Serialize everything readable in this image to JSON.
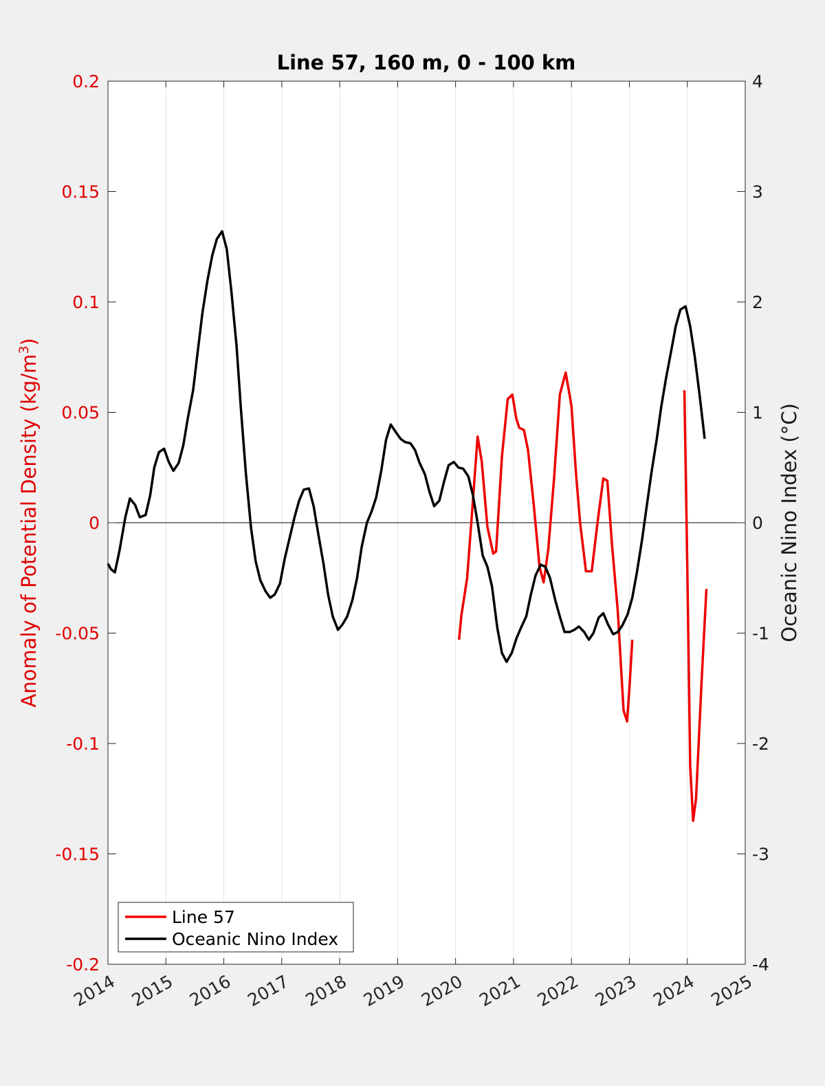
{
  "chart_data": {
    "type": "line",
    "title": "Line 57, 160 m, 0 - 100 km",
    "xlabel": "",
    "ylabel_left": "Anomaly of Potential Density (kg/m",
    "ylabel_left_sup": "3",
    "ylabel_left_close": ")",
    "ylabel_right": "Oceanic Nino Index (°C)",
    "xlim": [
      2014,
      2025
    ],
    "ylim_left": [
      -0.2,
      0.2
    ],
    "ylim_right": [
      -4,
      4
    ],
    "x_ticks": [
      "2014",
      "2015",
      "2016",
      "2017",
      "2018",
      "2019",
      "2020",
      "2021",
      "2022",
      "2023",
      "2024",
      "2025"
    ],
    "y_ticks_left": [
      "0.2",
      "0.15",
      "0.1",
      "0.05",
      "0",
      "-0.05",
      "-0.1",
      "-0.15",
      "-0.2"
    ],
    "y_ticks_right": [
      "4",
      "3",
      "2",
      "1",
      "0",
      "-1",
      "-2",
      "-3",
      "-4"
    ],
    "grid": "vertical",
    "zero_line": true,
    "legend_position": "bottom-left",
    "colors": {
      "line57": "#ee0000",
      "oni": "#000000",
      "left_axis": "#e00000",
      "right_axis": "#1a1a1a",
      "grid": "#e3e3e3"
    },
    "series": [
      {
        "name": "Line 57",
        "axis": "left",
        "segments": [
          [
            [
              2020.06,
              -0.053
            ],
            [
              2020.1,
              -0.042
            ],
            [
              2020.2,
              -0.025
            ],
            [
              2020.3,
              0.01
            ],
            [
              2020.38,
              0.039
            ],
            [
              2020.45,
              0.028
            ],
            [
              2020.55,
              -0.002
            ],
            [
              2020.65,
              -0.014
            ],
            [
              2020.7,
              -0.013
            ],
            [
              2020.8,
              0.03
            ],
            [
              2020.9,
              0.056
            ],
            [
              2020.98,
              0.058
            ],
            [
              2021.05,
              0.047
            ],
            [
              2021.1,
              0.043
            ],
            [
              2021.18,
              0.042
            ],
            [
              2021.25,
              0.033
            ],
            [
              2021.35,
              0.008
            ],
            [
              2021.45,
              -0.02
            ],
            [
              2021.52,
              -0.027
            ],
            [
              2021.6,
              -0.012
            ],
            [
              2021.7,
              0.02
            ],
            [
              2021.8,
              0.058
            ],
            [
              2021.9,
              0.068
            ],
            [
              2022.0,
              0.053
            ],
            [
              2022.08,
              0.022
            ],
            [
              2022.15,
              0.0
            ],
            [
              2022.25,
              -0.022
            ],
            [
              2022.35,
              -0.022
            ],
            [
              2022.45,
              0.0
            ],
            [
              2022.55,
              0.02
            ],
            [
              2022.62,
              0.019
            ],
            [
              2022.7,
              -0.01
            ],
            [
              2022.8,
              -0.04
            ],
            [
              2022.9,
              -0.085
            ],
            [
              2022.96,
              -0.09
            ],
            [
              2023.0,
              -0.075
            ],
            [
              2023.05,
              -0.053
            ]
          ],
          [
            [
              2023.95,
              0.06
            ],
            [
              2024.0,
              -0.02
            ],
            [
              2024.05,
              -0.11
            ],
            [
              2024.1,
              -0.135
            ],
            [
              2024.15,
              -0.125
            ],
            [
              2024.25,
              -0.07
            ],
            [
              2024.33,
              -0.03
            ]
          ]
        ]
      },
      {
        "name": "Oceanic Nino Index",
        "axis": "right",
        "segments": [
          [
            [
              2014.0,
              -0.37
            ],
            [
              2014.05,
              -0.42
            ],
            [
              2014.12,
              -0.45
            ],
            [
              2014.2,
              -0.25
            ],
            [
              2014.3,
              0.05
            ],
            [
              2014.38,
              0.22
            ],
            [
              2014.47,
              0.16
            ],
            [
              2014.55,
              0.05
            ],
            [
              2014.65,
              0.07
            ],
            [
              2014.73,
              0.25
            ],
            [
              2014.8,
              0.5
            ],
            [
              2014.88,
              0.64
            ],
            [
              2014.97,
              0.67
            ],
            [
              2015.05,
              0.55
            ],
            [
              2015.13,
              0.47
            ],
            [
              2015.22,
              0.54
            ],
            [
              2015.3,
              0.7
            ],
            [
              2015.38,
              0.95
            ],
            [
              2015.47,
              1.2
            ],
            [
              2015.55,
              1.55
            ],
            [
              2015.63,
              1.9
            ],
            [
              2015.72,
              2.2
            ],
            [
              2015.8,
              2.42
            ],
            [
              2015.88,
              2.57
            ],
            [
              2015.97,
              2.64
            ],
            [
              2016.05,
              2.48
            ],
            [
              2016.13,
              2.1
            ],
            [
              2016.22,
              1.6
            ],
            [
              2016.3,
              1.0
            ],
            [
              2016.38,
              0.45
            ],
            [
              2016.47,
              -0.05
            ],
            [
              2016.55,
              -0.35
            ],
            [
              2016.63,
              -0.52
            ],
            [
              2016.72,
              -0.62
            ],
            [
              2016.8,
              -0.68
            ],
            [
              2016.88,
              -0.65
            ],
            [
              2016.97,
              -0.55
            ],
            [
              2017.05,
              -0.33
            ],
            [
              2017.13,
              -0.15
            ],
            [
              2017.22,
              0.05
            ],
            [
              2017.3,
              0.2
            ],
            [
              2017.38,
              0.3
            ],
            [
              2017.47,
              0.31
            ],
            [
              2017.55,
              0.15
            ],
            [
              2017.63,
              -0.1
            ],
            [
              2017.72,
              -0.37
            ],
            [
              2017.8,
              -0.65
            ],
            [
              2017.88,
              -0.85
            ],
            [
              2017.97,
              -0.97
            ],
            [
              2018.05,
              -0.92
            ],
            [
              2018.13,
              -0.85
            ],
            [
              2018.22,
              -0.7
            ],
            [
              2018.3,
              -0.5
            ],
            [
              2018.38,
              -0.22
            ],
            [
              2018.47,
              0.0
            ],
            [
              2018.55,
              0.1
            ],
            [
              2018.63,
              0.23
            ],
            [
              2018.72,
              0.48
            ],
            [
              2018.8,
              0.75
            ],
            [
              2018.88,
              0.89
            ],
            [
              2018.97,
              0.82
            ],
            [
              2019.05,
              0.76
            ],
            [
              2019.13,
              0.73
            ],
            [
              2019.22,
              0.72
            ],
            [
              2019.3,
              0.66
            ],
            [
              2019.38,
              0.54
            ],
            [
              2019.47,
              0.44
            ],
            [
              2019.55,
              0.28
            ],
            [
              2019.63,
              0.15
            ],
            [
              2019.72,
              0.2
            ],
            [
              2019.8,
              0.37
            ],
            [
              2019.88,
              0.52
            ],
            [
              2019.97,
              0.55
            ],
            [
              2020.05,
              0.5
            ],
            [
              2020.13,
              0.49
            ],
            [
              2020.22,
              0.42
            ],
            [
              2020.3,
              0.25
            ],
            [
              2020.38,
              0.0
            ],
            [
              2020.47,
              -0.3
            ],
            [
              2020.55,
              -0.4
            ],
            [
              2020.63,
              -0.58
            ],
            [
              2020.72,
              -0.95
            ],
            [
              2020.8,
              -1.18
            ],
            [
              2020.88,
              -1.26
            ],
            [
              2020.97,
              -1.18
            ],
            [
              2021.05,
              -1.05
            ],
            [
              2021.13,
              -0.95
            ],
            [
              2021.22,
              -0.85
            ],
            [
              2021.3,
              -0.65
            ],
            [
              2021.38,
              -0.48
            ],
            [
              2021.47,
              -0.38
            ],
            [
              2021.55,
              -0.4
            ],
            [
              2021.63,
              -0.5
            ],
            [
              2021.72,
              -0.7
            ],
            [
              2021.8,
              -0.85
            ],
            [
              2021.88,
              -0.99
            ],
            [
              2021.97,
              -0.99
            ],
            [
              2022.05,
              -0.97
            ],
            [
              2022.13,
              -0.94
            ],
            [
              2022.22,
              -0.99
            ],
            [
              2022.3,
              -1.06
            ],
            [
              2022.38,
              -1.0
            ],
            [
              2022.47,
              -0.86
            ],
            [
              2022.55,
              -0.82
            ],
            [
              2022.63,
              -0.92
            ],
            [
              2022.72,
              -1.01
            ],
            [
              2022.8,
              -0.99
            ],
            [
              2022.88,
              -0.93
            ],
            [
              2022.97,
              -0.83
            ],
            [
              2023.05,
              -0.68
            ],
            [
              2023.13,
              -0.45
            ],
            [
              2023.22,
              -0.15
            ],
            [
              2023.3,
              0.15
            ],
            [
              2023.38,
              0.45
            ],
            [
              2023.47,
              0.75
            ],
            [
              2023.55,
              1.05
            ],
            [
              2023.63,
              1.3
            ],
            [
              2023.72,
              1.55
            ],
            [
              2023.8,
              1.78
            ],
            [
              2023.88,
              1.93
            ],
            [
              2023.97,
              1.96
            ],
            [
              2024.05,
              1.78
            ],
            [
              2024.13,
              1.5
            ],
            [
              2024.22,
              1.12
            ],
            [
              2024.3,
              0.76
            ]
          ]
        ]
      }
    ]
  }
}
